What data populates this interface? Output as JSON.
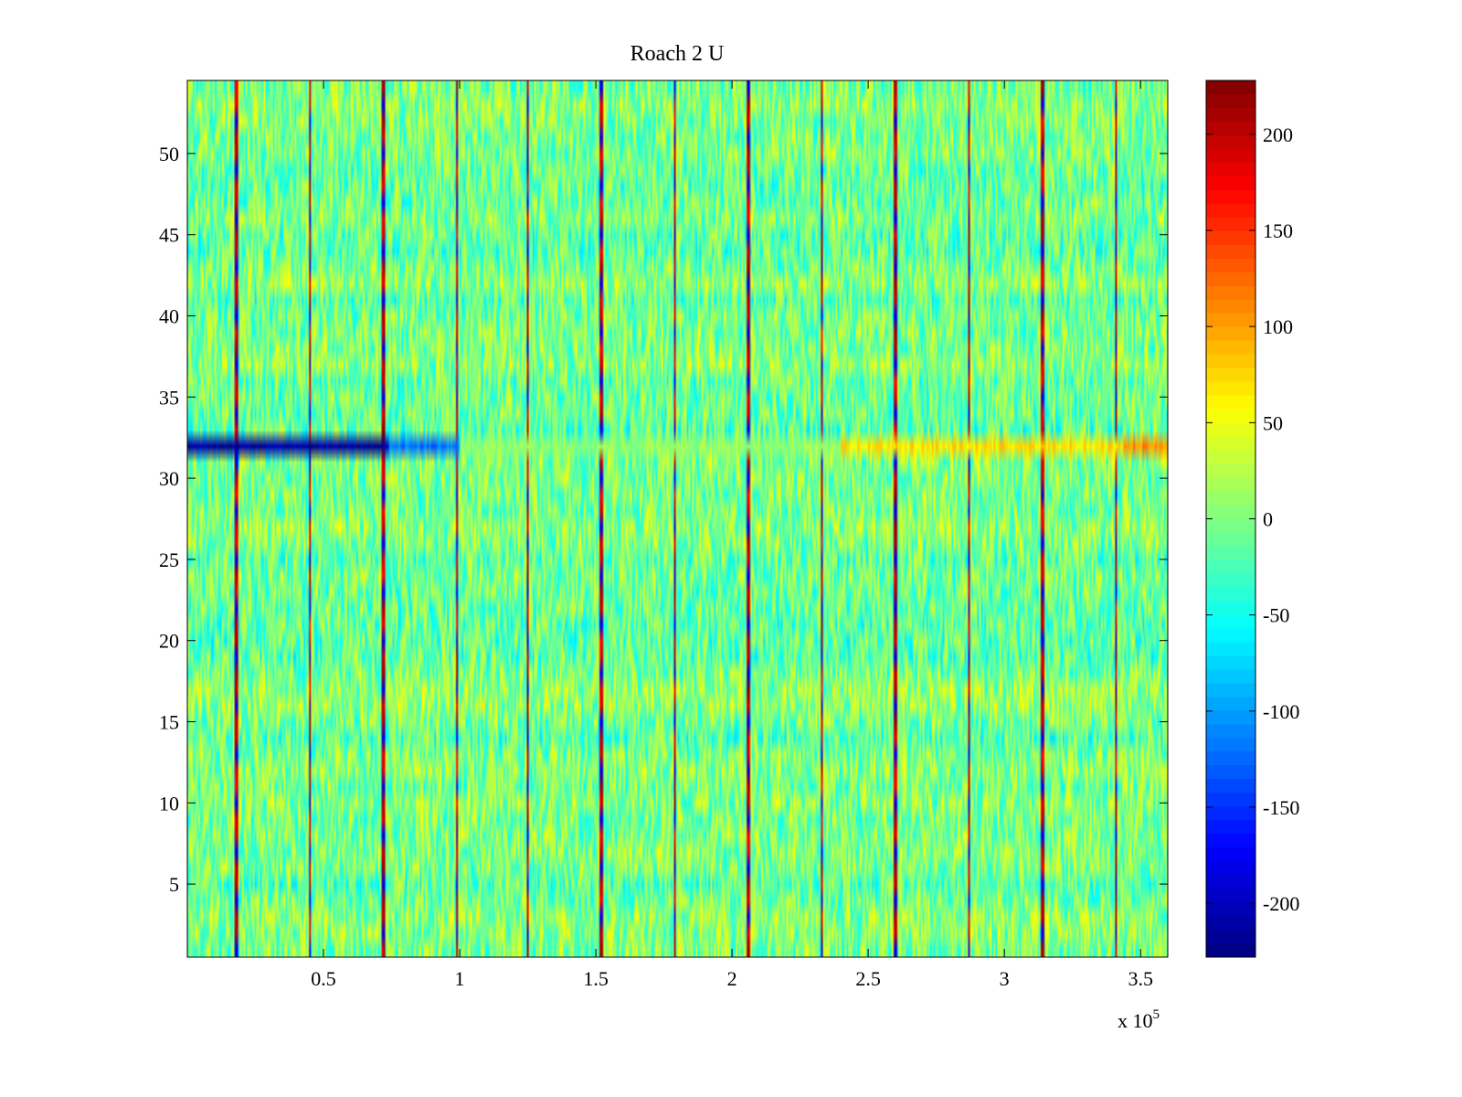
{
  "chart_data": {
    "type": "heatmap",
    "title": "Roach 2 U",
    "xlabel": "",
    "ylabel": "",
    "x_exponent_label": "x 10",
    "x_exponent_power": "5",
    "x_multiplier": 100000,
    "xlim": [
      0,
      3.6
    ],
    "ylim": [
      0.5,
      54.5
    ],
    "x_ticks": [
      0.5,
      1,
      1.5,
      2,
      2.5,
      3,
      3.5
    ],
    "x_tick_labels": [
      "0.5",
      "1",
      "1.5",
      "2",
      "2.5",
      "3",
      "3.5"
    ],
    "y_ticks": [
      5,
      10,
      15,
      20,
      25,
      30,
      35,
      40,
      45,
      50
    ],
    "y_tick_labels": [
      "5",
      "10",
      "15",
      "20",
      "25",
      "30",
      "35",
      "40",
      "45",
      "50"
    ],
    "rows": 54,
    "row_count_note": "one horizontal band per channel 1..54",
    "colormap": "jet",
    "colorbar": {
      "clim": [
        -228,
        228
      ],
      "ticks": [
        -200,
        -150,
        -100,
        -50,
        0,
        50,
        100,
        150,
        200
      ],
      "tick_labels": [
        "-200",
        "-150",
        "-100",
        "-50",
        "0",
        "50",
        "100",
        "150",
        "200"
      ]
    },
    "background_value_range": [
      -60,
      50
    ],
    "periodic_spike_x": [
      0.18,
      0.45,
      0.72,
      0.99,
      1.25,
      1.52,
      1.79,
      2.06,
      2.33,
      2.6,
      2.87,
      3.14,
      3.41
    ],
    "spike_value_high": 200,
    "spike_value_low": -180,
    "anomalous_row": {
      "row": 32,
      "segments": [
        {
          "x_start": 0.0,
          "x_end": 0.74,
          "value": -215
        },
        {
          "x_start": 0.74,
          "x_end": 1.0,
          "value": -120
        },
        {
          "x_start": 1.0,
          "x_end": 2.4,
          "value": 10
        },
        {
          "x_start": 2.4,
          "x_end": 3.43,
          "value": 70
        },
        {
          "x_start": 3.43,
          "x_end": 3.6,
          "value": 110
        }
      ]
    }
  }
}
